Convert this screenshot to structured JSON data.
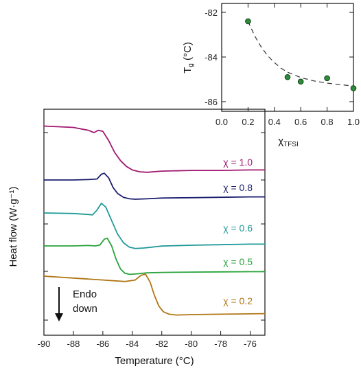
{
  "chart_data": [
    {
      "type": "line",
      "xlabel": "Temperature (°C)",
      "ylabel": "Heat flow (W·g⁻¹)",
      "xlim": [
        -90,
        -75
      ],
      "xticks": [
        -90,
        -88,
        -86,
        -84,
        -82,
        -80,
        -78,
        -76
      ],
      "xtick_labels": [
        "-90",
        "-88",
        "-86",
        "-84",
        "-82",
        "-80",
        "-78",
        "-76"
      ],
      "y_ticks_labeled": false,
      "grid": false,
      "series": [
        {
          "name": "χ = 1.0",
          "color": "#a0176e",
          "x": [
            -90,
            -88,
            -87,
            -86.6,
            -86.3,
            -86.0,
            -85.6,
            -85.2,
            -84.8,
            -84.4,
            -84.0,
            -83.5,
            -83.0,
            -82.0,
            -80,
            -78,
            -76,
            -75
          ],
          "y": [
            0.28,
            0.22,
            0.1,
            0.0,
            0.1,
            0.05,
            -0.35,
            -0.85,
            -1.2,
            -1.45,
            -1.6,
            -1.68,
            -1.7,
            -1.65,
            -1.62,
            -1.62,
            -1.6,
            -1.6
          ]
        },
        {
          "name": "χ = 0.8",
          "color": "#1c1e6e",
          "x": [
            -90,
            -88,
            -87,
            -86.4,
            -86.1,
            -85.9,
            -85.6,
            -85.3,
            -85.0,
            -84.6,
            -84.2,
            -83.8,
            -83.0,
            -82.0,
            -80,
            -78,
            -76,
            -75
          ],
          "y": [
            0.0,
            0.0,
            0.02,
            0.05,
            0.3,
            0.35,
            0.1,
            -0.4,
            -0.7,
            -0.9,
            -0.98,
            -1.0,
            -0.98,
            -0.94,
            -0.92,
            -0.9,
            -0.88,
            -0.88
          ]
        },
        {
          "name": "χ = 0.6",
          "color": "#1e9a98",
          "x": [
            -90,
            -88,
            -87,
            -86.7,
            -86.4,
            -86.1,
            -85.8,
            -85.4,
            -85.0,
            -84.6,
            -84.2,
            -83.8,
            -83.2,
            -82.0,
            -80,
            -78,
            -76,
            -75
          ],
          "y": [
            0.0,
            -0.03,
            -0.08,
            -0.1,
            0.15,
            0.5,
            0.3,
            -0.4,
            -1.1,
            -1.55,
            -1.78,
            -1.85,
            -1.82,
            -1.72,
            -1.68,
            -1.65,
            -1.62,
            -1.62
          ]
        },
        {
          "name": "χ = 0.5",
          "color": "#27a33a",
          "x": [
            -90,
            -88,
            -87,
            -86.5,
            -86.2,
            -85.9,
            -85.7,
            -85.4,
            -85.1,
            -84.8,
            -84.5,
            -84.2,
            -83.8,
            -83.0,
            -82.0,
            -80,
            -78,
            -76,
            -75
          ],
          "y": [
            0.0,
            0.0,
            0.02,
            0.0,
            0.05,
            0.35,
            0.4,
            0.0,
            -0.7,
            -1.2,
            -1.42,
            -1.48,
            -1.46,
            -1.4,
            -1.38,
            -1.36,
            -1.35,
            -1.34,
            -1.34
          ]
        },
        {
          "name": "χ = 0.2",
          "color": "#b07514",
          "x": [
            -90,
            -88,
            -86,
            -84.5,
            -83.8,
            -83.4,
            -83.1,
            -82.8,
            -82.5,
            -82.2,
            -81.9,
            -81.5,
            -81.0,
            -80,
            -78,
            -76,
            -75
          ],
          "y": [
            0.0,
            -0.1,
            -0.2,
            -0.28,
            -0.2,
            0.05,
            0.1,
            -0.3,
            -1.0,
            -1.55,
            -1.85,
            -1.98,
            -2.02,
            -2.0,
            -1.98,
            -1.96,
            -1.95
          ]
        }
      ],
      "annotation": {
        "lines": [
          "Endo",
          "down"
        ]
      }
    },
    {
      "type": "scatter",
      "xlabel_main": "χ",
      "xlabel_sub": "TFSI",
      "ylabel_main": "T",
      "ylabel_sub": "g",
      "ylabel_unit": " (°C)",
      "xlim": [
        0.0,
        1.0
      ],
      "ylim": [
        -86,
        -82
      ],
      "xticks": [
        0.0,
        0.2,
        0.4,
        0.6,
        0.8,
        1.0
      ],
      "xtick_labels": [
        "0.0",
        "0.2",
        "0.4",
        "0.6",
        "0.8",
        "1.0"
      ],
      "yticks": [
        -86,
        -84,
        -82
      ],
      "ytick_labels": [
        "-86",
        "-84",
        "-82"
      ],
      "grid": false,
      "marker_color": "#2e8b3a",
      "x": [
        0.2,
        0.5,
        0.6,
        0.8,
        1.0
      ],
      "y": [
        -82.4,
        -84.9,
        -85.1,
        -84.95,
        -85.4
      ],
      "fit_curve": {
        "style": "dashed",
        "x": [
          0.2,
          0.25,
          0.3,
          0.35,
          0.4,
          0.45,
          0.5,
          0.6,
          0.7,
          0.8,
          0.9,
          1.0
        ],
        "y": [
          -82.4,
          -83.05,
          -83.55,
          -83.95,
          -84.25,
          -84.5,
          -84.68,
          -84.92,
          -85.07,
          -85.17,
          -85.24,
          -85.3
        ]
      }
    }
  ]
}
